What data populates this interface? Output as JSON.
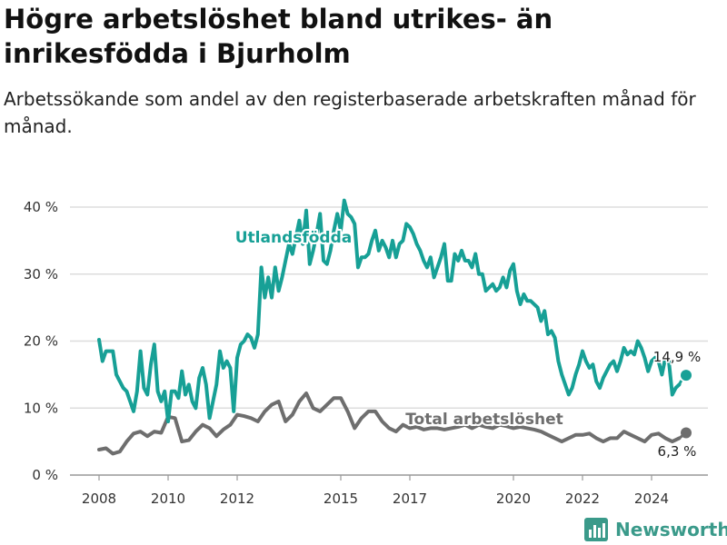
{
  "header": {
    "title": "Högre arbetslöshet bland utrikes- än inrikesfödda i Bjurholm",
    "subtitle": "Arbetssökande som andel av den registerbaserade arbetskraften månad för månad."
  },
  "brand": {
    "name": "Newsworthy",
    "icon": "bar-chart-logo-icon"
  },
  "chart_data": {
    "type": "line",
    "x_ticks": [
      "2008",
      "2010",
      "2012",
      "2015",
      "2017",
      "2020",
      "2022",
      "2024"
    ],
    "x_tick_positions": [
      2008.0,
      2010.0,
      2012.0,
      2015.0,
      2017.0,
      2020.0,
      2022.0,
      2024.0
    ],
    "xlim": [
      2008.0,
      2025.1
    ],
    "ylim": [
      0,
      40
    ],
    "y_ticks": [
      "0 %",
      "10 %",
      "20 %",
      "30 %",
      "40 %"
    ],
    "y_tick_values": [
      0,
      10,
      20,
      30,
      40
    ],
    "grid": "horizontal",
    "colors": {
      "utlandsfodda": "#17a096",
      "total": "#6e6e6e",
      "grid": "#dddddd",
      "axis": "#999999"
    },
    "series": [
      {
        "name": "Utlandsfödda",
        "label": "Utlandsfödda",
        "end_value_label": "14,9 %",
        "x": [
          2008.0,
          2008.1,
          2008.2,
          2008.4,
          2008.5,
          2008.7,
          2008.8,
          2008.9,
          2009.0,
          2009.1,
          2009.2,
          2009.3,
          2009.4,
          2009.5,
          2009.6,
          2009.7,
          2009.8,
          2009.9,
          2010.0,
          2010.1,
          2010.2,
          2010.3,
          2010.4,
          2010.5,
          2010.6,
          2010.7,
          2010.8,
          2010.9,
          2011.0,
          2011.1,
          2011.2,
          2011.3,
          2011.4,
          2011.5,
          2011.6,
          2011.7,
          2011.8,
          2011.9,
          2012.0,
          2012.1,
          2012.2,
          2012.3,
          2012.4,
          2012.5,
          2012.6,
          2012.7,
          2012.8,
          2012.9,
          2013.0,
          2013.1,
          2013.2,
          2013.3,
          2013.4,
          2013.5,
          2013.6,
          2013.7,
          2013.8,
          2013.9,
          2014.0,
          2014.1,
          2014.2,
          2014.3,
          2014.4,
          2014.5,
          2014.6,
          2014.7,
          2014.8,
          2014.9,
          2015.0,
          2015.1,
          2015.2,
          2015.3,
          2015.4,
          2015.5,
          2015.6,
          2015.7,
          2015.8,
          2015.9,
          2016.0,
          2016.1,
          2016.2,
          2016.3,
          2016.4,
          2016.5,
          2016.6,
          2016.7,
          2016.8,
          2016.9,
          2017.0,
          2017.1,
          2017.2,
          2017.3,
          2017.4,
          2017.5,
          2017.6,
          2017.7,
          2017.8,
          2017.9,
          2018.0,
          2018.1,
          2018.2,
          2018.3,
          2018.4,
          2018.5,
          2018.6,
          2018.7,
          2018.8,
          2018.9,
          2019.0,
          2019.1,
          2019.2,
          2019.3,
          2019.4,
          2019.5,
          2019.6,
          2019.7,
          2019.8,
          2019.9,
          2020.0,
          2020.1,
          2020.2,
          2020.3,
          2020.4,
          2020.5,
          2020.6,
          2020.7,
          2020.8,
          2020.9,
          2021.0,
          2021.1,
          2021.2,
          2021.3,
          2021.4,
          2021.5,
          2021.6,
          2021.7,
          2021.8,
          2021.9,
          2022.0,
          2022.1,
          2022.2,
          2022.3,
          2022.4,
          2022.5,
          2022.6,
          2022.7,
          2022.8,
          2022.9,
          2023.0,
          2023.1,
          2023.2,
          2023.3,
          2023.4,
          2023.5,
          2023.6,
          2023.7,
          2023.8,
          2023.9,
          2024.0,
          2024.1,
          2024.2,
          2024.3,
          2024.4,
          2024.5,
          2024.6,
          2024.7,
          2024.8,
          2024.9,
          2025.0
        ],
        "values": [
          20.2,
          17.0,
          18.5,
          18.5,
          15.0,
          13.0,
          12.5,
          11.0,
          9.5,
          12.5,
          18.5,
          13.0,
          12.0,
          16.5,
          19.5,
          12.5,
          11.0,
          12.5,
          8.0,
          12.5,
          12.5,
          11.5,
          15.5,
          12.0,
          13.5,
          11.0,
          10.0,
          14.5,
          16.0,
          13.5,
          8.5,
          11.0,
          13.5,
          18.5,
          16.0,
          17.0,
          16.0,
          9.5,
          17.5,
          19.5,
          20.0,
          21.0,
          20.5,
          19.0,
          21.0,
          31.0,
          26.5,
          29.5,
          26.5,
          31.0,
          27.5,
          29.5,
          32.0,
          34.5,
          33.0,
          35.5,
          38.0,
          34.5,
          39.5,
          31.5,
          33.5,
          36.0,
          39.0,
          32.0,
          31.5,
          33.5,
          36.5,
          39.0,
          36.5,
          41.0,
          39.0,
          38.5,
          37.5,
          31.0,
          32.5,
          32.5,
          33.0,
          35.0,
          36.5,
          33.5,
          35.0,
          34.0,
          32.5,
          35.0,
          32.5,
          34.5,
          35.0,
          37.5,
          37.0,
          36.0,
          34.5,
          33.5,
          32.0,
          31.0,
          32.5,
          29.5,
          31.0,
          32.5,
          34.5,
          29.0,
          29.0,
          33.0,
          32.0,
          33.5,
          32.0,
          32.0,
          31.0,
          33.0,
          30.0,
          30.0,
          27.5,
          28.0,
          28.5,
          27.5,
          28.0,
          29.5,
          28.0,
          30.5,
          31.5,
          27.5,
          25.5,
          27.0,
          26.0,
          26.0,
          25.5,
          25.0,
          23.0,
          24.5,
          21.0,
          21.5,
          20.5,
          17.0,
          15.0,
          13.5,
          12.0,
          13.0,
          15.0,
          16.5,
          18.5,
          17.0,
          16.0,
          16.5,
          14.0,
          13.0,
          14.5,
          15.5,
          16.5,
          17.0,
          15.5,
          17.0,
          19.0,
          18.0,
          18.5,
          18.0,
          20.0,
          19.0,
          17.5,
          15.5,
          17.0,
          17.5,
          17.0,
          15.0,
          17.5,
          17.0,
          12.0,
          13.0,
          13.5,
          14.5,
          14.9
        ],
        "dash_from": 2024.8
      },
      {
        "name": "Total arbetslöshet",
        "label": "Total arbetslöshet",
        "end_value_label": "6,3 %",
        "x": [
          2008.0,
          2008.2,
          2008.4,
          2008.6,
          2008.8,
          2009.0,
          2009.2,
          2009.4,
          2009.6,
          2009.8,
          2010.0,
          2010.2,
          2010.4,
          2010.6,
          2010.8,
          2011.0,
          2011.2,
          2011.4,
          2011.6,
          2011.8,
          2012.0,
          2012.2,
          2012.4,
          2012.6,
          2012.8,
          2013.0,
          2013.2,
          2013.4,
          2013.6,
          2013.8,
          2014.0,
          2014.2,
          2014.4,
          2014.6,
          2014.8,
          2015.0,
          2015.2,
          2015.4,
          2015.6,
          2015.8,
          2016.0,
          2016.2,
          2016.4,
          2016.6,
          2016.8,
          2017.0,
          2017.2,
          2017.4,
          2017.6,
          2017.8,
          2018.0,
          2018.2,
          2018.4,
          2018.6,
          2018.8,
          2019.0,
          2019.2,
          2019.4,
          2019.6,
          2019.8,
          2020.0,
          2020.2,
          2020.4,
          2020.6,
          2020.8,
          2021.0,
          2021.2,
          2021.4,
          2021.6,
          2021.8,
          2022.0,
          2022.2,
          2022.4,
          2022.6,
          2022.8,
          2023.0,
          2023.2,
          2023.4,
          2023.6,
          2023.8,
          2024.0,
          2024.2,
          2024.4,
          2024.6,
          2024.8,
          2025.0
        ],
        "values": [
          3.8,
          4.0,
          3.2,
          3.5,
          5.0,
          6.2,
          6.5,
          5.8,
          6.5,
          6.3,
          8.7,
          8.5,
          5.0,
          5.2,
          6.5,
          7.5,
          7.0,
          5.8,
          6.8,
          7.5,
          9.0,
          8.8,
          8.5,
          8.0,
          9.5,
          10.5,
          11.0,
          8.0,
          9.0,
          11.0,
          12.2,
          10.0,
          9.5,
          10.5,
          11.5,
          11.5,
          9.5,
          7.0,
          8.5,
          9.5,
          9.5,
          8.0,
          7.0,
          6.5,
          7.5,
          7.0,
          7.2,
          6.8,
          7.0,
          7.0,
          6.8,
          7.0,
          7.2,
          7.5,
          7.0,
          7.5,
          7.2,
          7.0,
          7.5,
          7.3,
          7.0,
          7.2,
          7.0,
          6.8,
          6.5,
          6.0,
          5.5,
          5.0,
          5.5,
          6.0,
          6.0,
          6.2,
          5.5,
          5.0,
          5.5,
          5.5,
          6.5,
          6.0,
          5.5,
          5.0,
          6.0,
          6.2,
          5.5,
          5.0,
          5.5,
          6.3
        ],
        "dash_from": 2024.8
      }
    ]
  }
}
